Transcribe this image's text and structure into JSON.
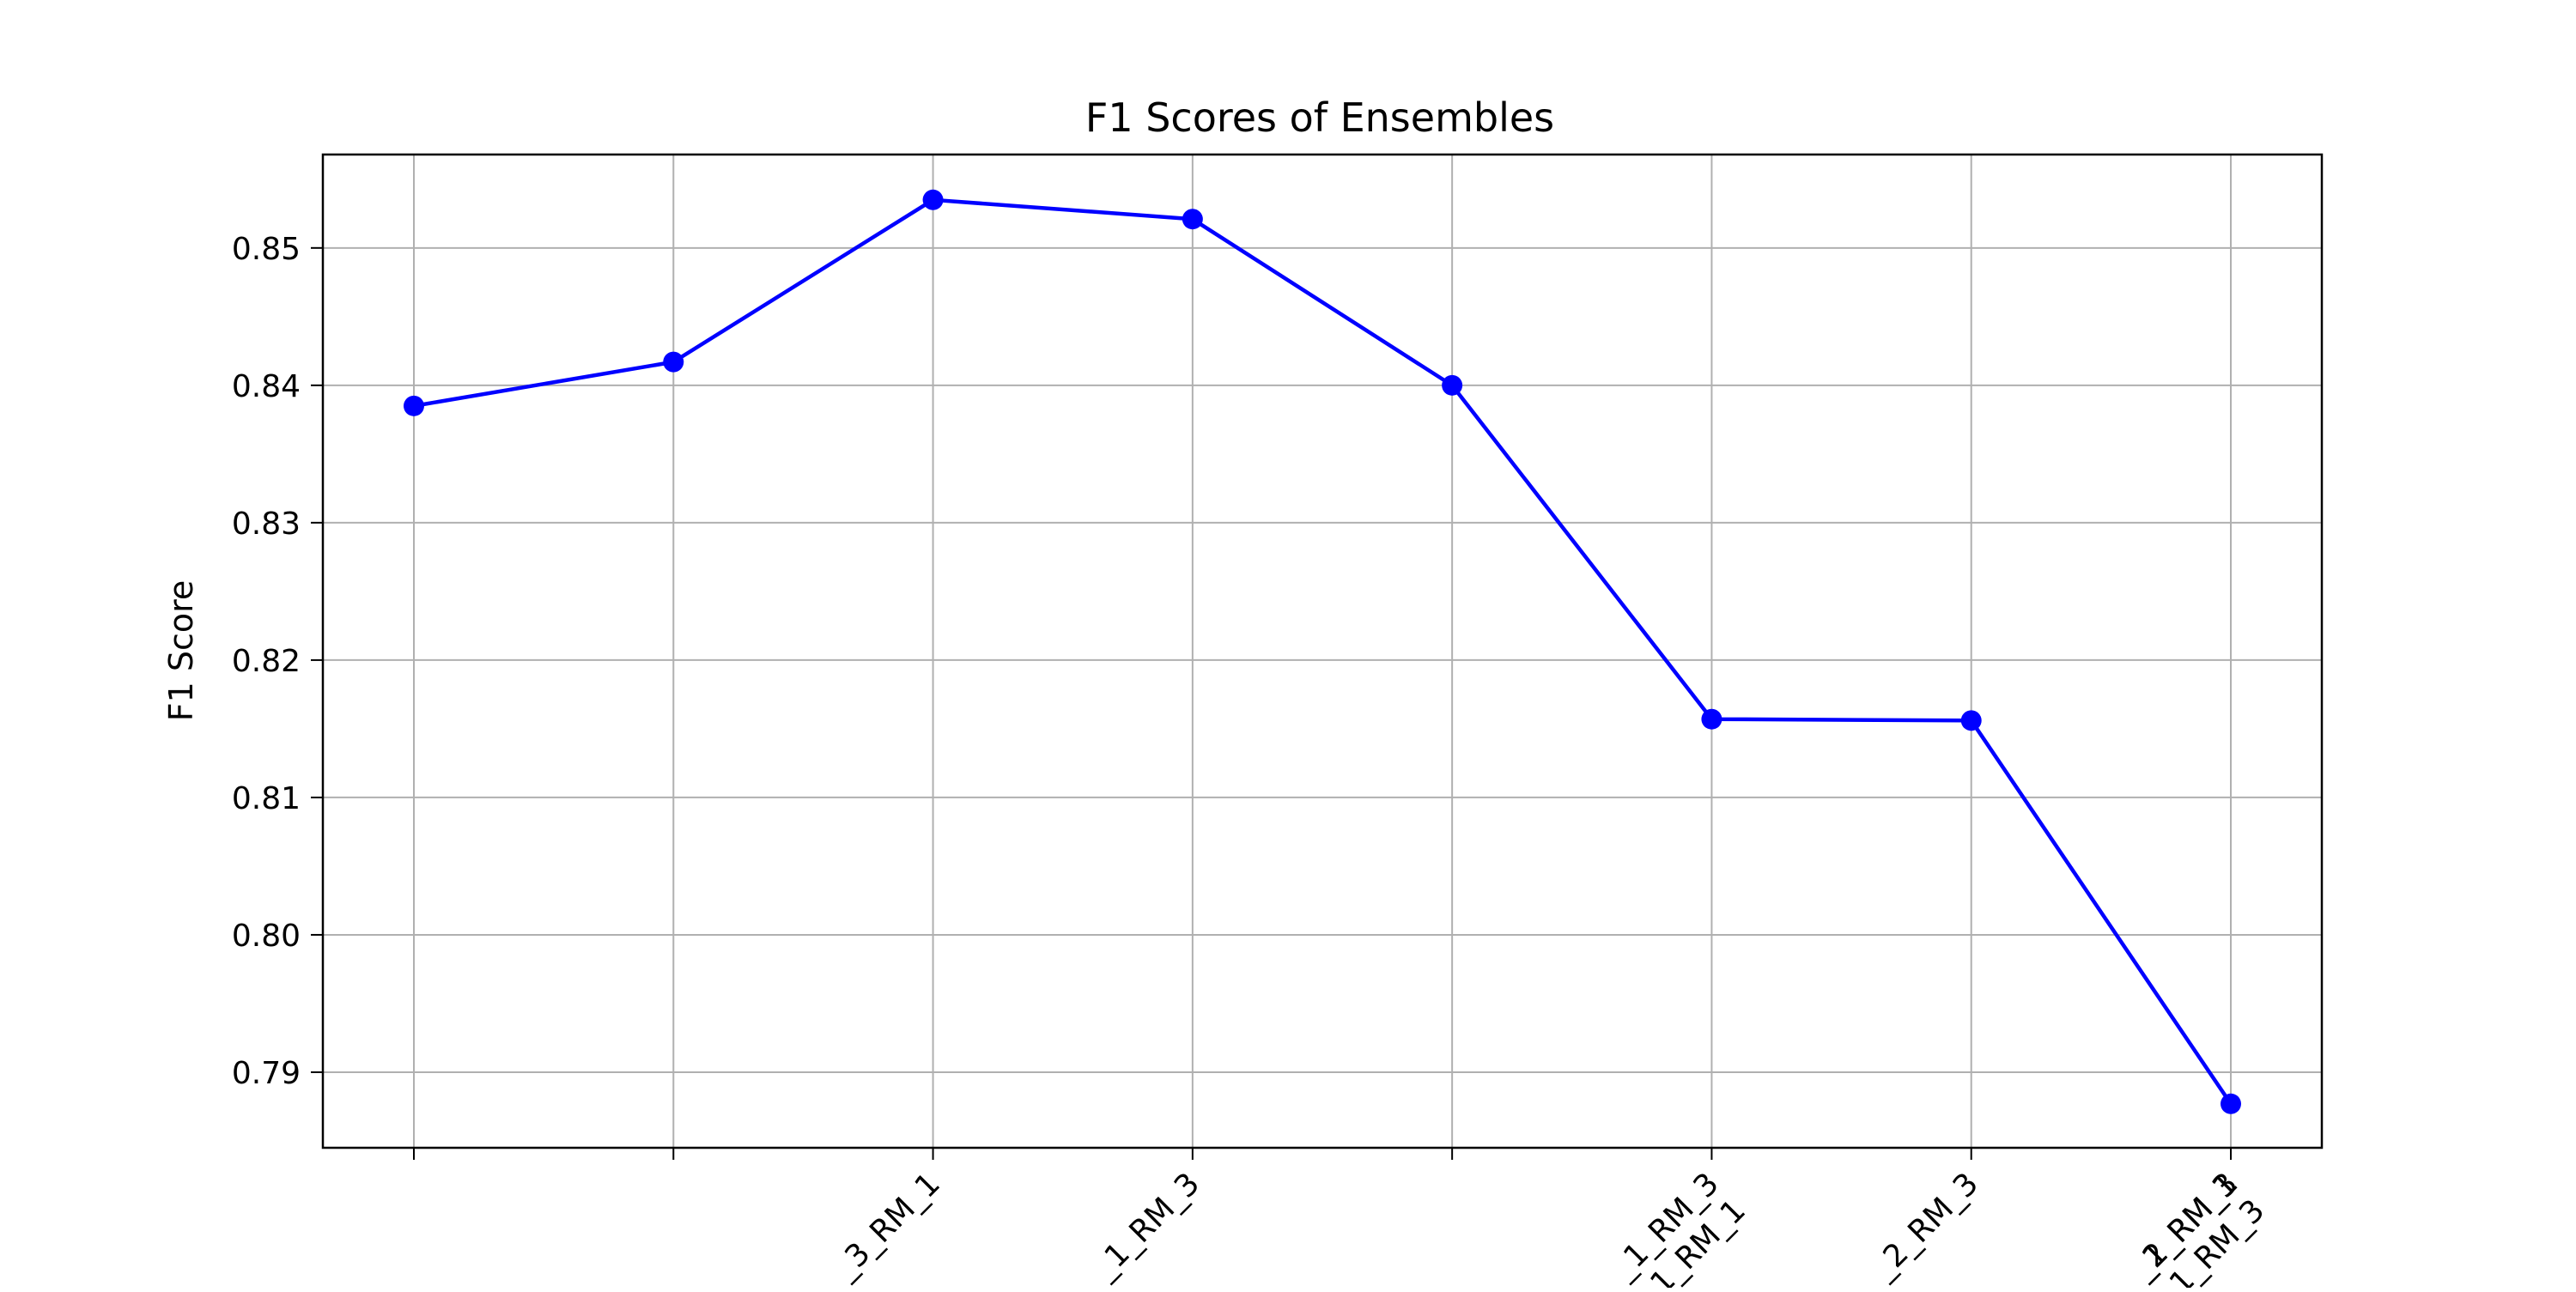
{
  "chart_data": {
    "type": "line",
    "title": "F1 Scores of Ensembles",
    "xlabel": "",
    "ylabel": "F1 Score",
    "categories": [
      "",
      "",
      "_3_RM_1",
      "_1_RM_3",
      "",
      "",
      "_2_RM_3",
      "_1_RM_1"
    ],
    "extra_x_labels": [
      {
        "category_index": 5,
        "lines": [
          "_1_RM_3",
          "_1_RM_1"
        ]
      },
      {
        "category_index": 7,
        "lines": [
          "_2_RM_3",
          "_1_RM_3"
        ]
      }
    ],
    "series": [
      {
        "color": "#0000ff",
        "values": [
          0.8385,
          0.8417,
          0.8535,
          0.8521,
          0.84,
          0.8157,
          0.8156,
          0.7877
        ]
      }
    ],
    "ylim": [
      0.7845,
      0.8568
    ],
    "yticks": [
      0.79,
      0.8,
      0.81,
      0.82,
      0.83,
      0.84,
      0.85
    ],
    "ytick_labels": [
      "0.79",
      "0.80",
      "0.81",
      "0.82",
      "0.83",
      "0.84",
      "0.85"
    ],
    "grid": true,
    "legend": "none",
    "colors": {
      "line": "#0000ff",
      "grid": "#b0b0b0",
      "axes": "#000000"
    }
  }
}
